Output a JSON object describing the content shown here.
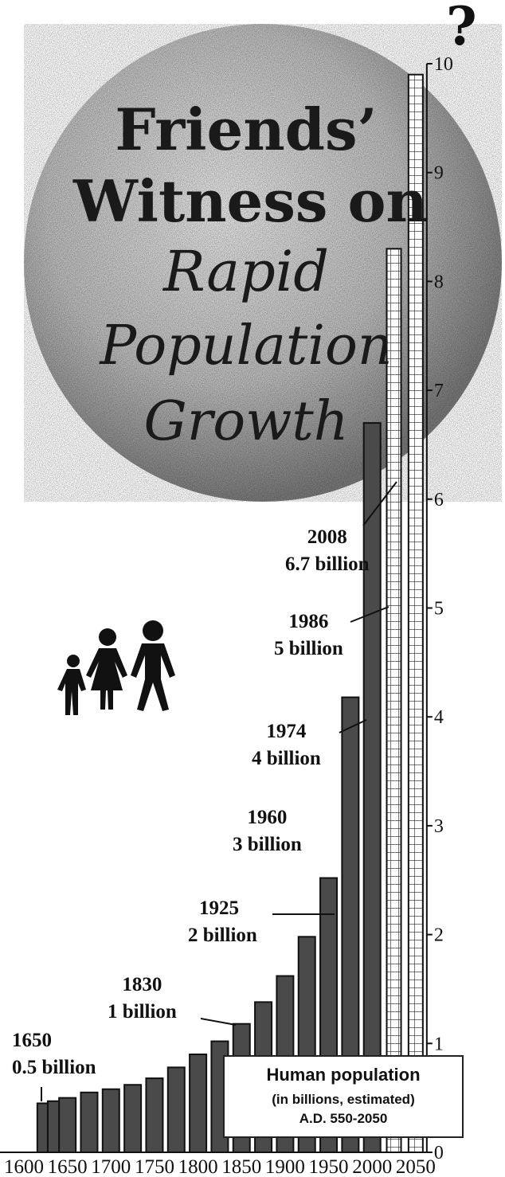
{
  "title": {
    "line1": "Friends’",
    "line2": "Witness on",
    "line3": "Rapid",
    "line4": "Population",
    "line5": "Growth"
  },
  "future_marker": "?",
  "legend": {
    "line1": "Human population",
    "line2": "(in billions, estimated)",
    "line3": "A.D. 550-2050"
  },
  "annotations": [
    {
      "year": "1650",
      "value": "0.5 billion"
    },
    {
      "year": "1830",
      "value": "1 billion"
    },
    {
      "year": "1925",
      "value": "2 billion"
    },
    {
      "year": "1960",
      "value": "3 billion"
    },
    {
      "year": "1974",
      "value": "4 billion"
    },
    {
      "year": "1986",
      "value": "5 billion"
    },
    {
      "year": "2008",
      "value": "6.7 billion"
    }
  ],
  "icons": [
    "family-silhouette-icon"
  ],
  "colors": {
    "bar": "#4a4a4a",
    "bar_stroke": "#111111",
    "circle": "#555555",
    "text": "#111111"
  },
  "chart_data": {
    "type": "bar",
    "title": "",
    "xlabel": "",
    "ylabel": "",
    "ylim": [
      0,
      10
    ],
    "y_ticks": [
      0,
      1,
      2,
      3,
      4,
      5,
      6,
      7,
      8,
      9,
      10
    ],
    "x_tick_labels": [
      "1600",
      "1650",
      "1700",
      "1750",
      "1800",
      "1850",
      "1900",
      "1950",
      "2000",
      "2050"
    ],
    "x": [
      1625,
      1637,
      1650,
      1675,
      1700,
      1725,
      1750,
      1775,
      1800,
      1825,
      1850,
      1875,
      1900,
      1925,
      1950,
      1975,
      2000
    ],
    "values": [
      0.45,
      0.47,
      0.5,
      0.55,
      0.58,
      0.62,
      0.68,
      0.78,
      0.9,
      1.02,
      1.18,
      1.38,
      1.62,
      1.98,
      2.52,
      4.18,
      6.7
    ],
    "projections": [
      {
        "x": 2025,
        "value": 8.3,
        "style": "hatched"
      },
      {
        "x": 2050,
        "value": 9.9,
        "style": "hatched"
      }
    ]
  }
}
